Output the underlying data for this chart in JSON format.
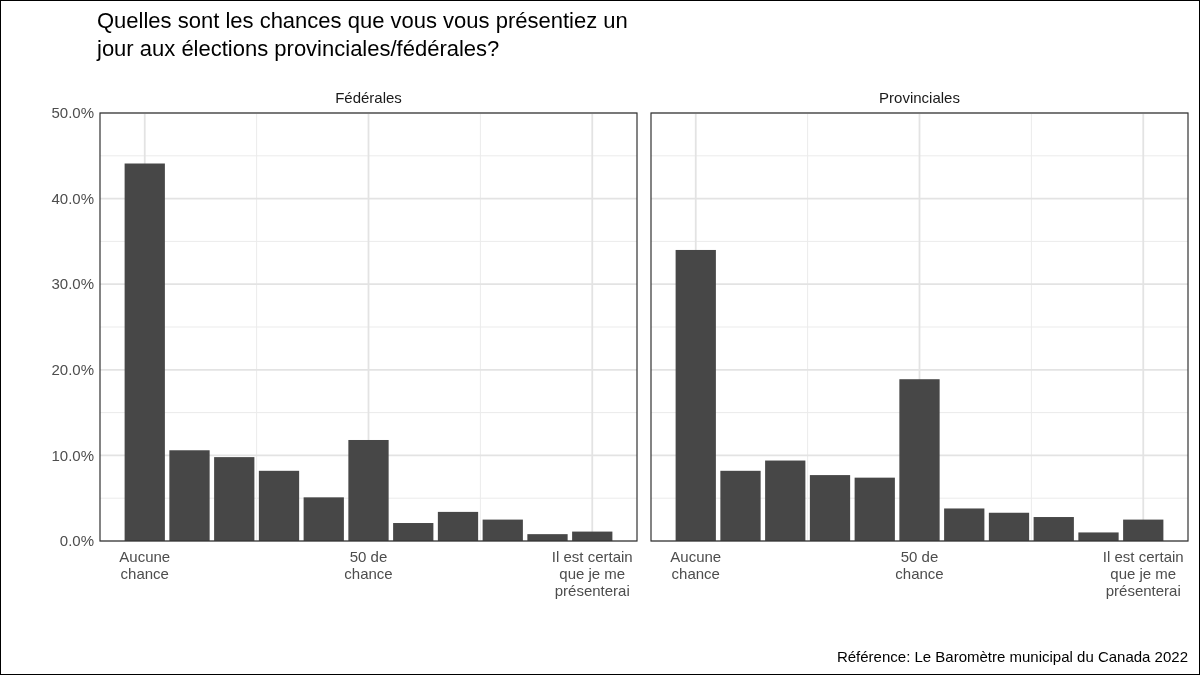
{
  "chart_data": [
    {
      "type": "bar",
      "title": "Quelles sont les chances que vous vous présentiez un\njour aux élections provinciales/fédérales?",
      "subtitle": "Fédérales",
      "categories": [
        "Aucune\nchance",
        null,
        null,
        null,
        null,
        "50 de\nchance",
        null,
        null,
        null,
        null,
        "Il est certain\nque je me\nprésenterai"
      ],
      "values": [
        44.1,
        10.6,
        9.8,
        8.2,
        5.1,
        11.8,
        2.1,
        3.4,
        2.5,
        0.8,
        1.1
      ],
      "color": "#474747",
      "ylim": [
        0,
        50
      ],
      "yticks": [
        {
          "value": 0,
          "label": "0.0%"
        },
        {
          "value": 10,
          "label": "10.0%"
        },
        {
          "value": 20,
          "label": "20.0%"
        },
        {
          "value": 30,
          "label": "30.0%"
        },
        {
          "value": 40,
          "label": "40.0%"
        },
        {
          "value": 50,
          "label": "50.0%"
        }
      ],
      "grid": true
    },
    {
      "type": "bar",
      "subtitle": "Provinciales",
      "categories": [
        "Aucune\nchance",
        null,
        null,
        null,
        null,
        "50 de\nchance",
        null,
        null,
        null,
        null,
        "Il est certain\nque je me\nprésenterai"
      ],
      "values": [
        34.0,
        8.2,
        9.4,
        7.7,
        7.4,
        18.9,
        3.8,
        3.3,
        2.8,
        1.0,
        2.5
      ],
      "color": "#474747",
      "ylim": [
        0,
        50
      ],
      "yticks": [
        0,
        10,
        20,
        30,
        40,
        50
      ],
      "grid": true,
      "tick_labels": "x",
      "annotations": [
        "Référence: Le Baromètre municipal du Canada 2022"
      ]
    }
  ]
}
